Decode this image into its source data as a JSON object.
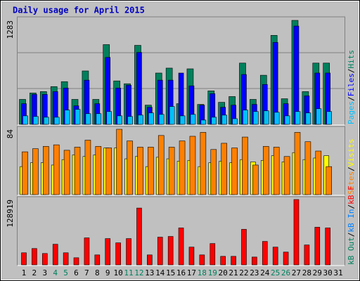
{
  "title": "Daily usage for April 2015",
  "legend_separator": "/",
  "categories": [
    "1",
    "2",
    "3",
    "4",
    "5",
    "6",
    "7",
    "8",
    "9",
    "10",
    "11",
    "12",
    "13",
    "14",
    "15",
    "16",
    "17",
    "18",
    "19",
    "20",
    "21",
    "22",
    "23",
    "24",
    "25",
    "26",
    "27",
    "28",
    "29",
    "30",
    "31"
  ],
  "category_colors": [
    "#000000",
    "#000000",
    "#000000",
    "#00805c",
    "#00805c",
    "#000000",
    "#000000",
    "#000000",
    "#000000",
    "#000000",
    "#00805c",
    "#00805c",
    "#000000",
    "#000000",
    "#000000",
    "#000000",
    "#000000",
    "#00805c",
    "#00805c",
    "#000000",
    "#000000",
    "#000000",
    "#000000",
    "#000000",
    "#00805c",
    "#00805c",
    "#000000",
    "#000000",
    "#000000",
    "#000000",
    "#000000"
  ],
  "chart_data": [
    {
      "type": "bar",
      "ylim": [
        0,
        1283
      ],
      "yticks": [
        1283
      ],
      "grid": true,
      "series": [
        {
          "name": "Hits",
          "color": "#00805c",
          "values": [
            308,
            387,
            404,
            466,
            527,
            308,
            659,
            308,
            984,
            536,
            501,
            975,
            237,
            633,
            694,
            255,
            685,
            246,
            413,
            272,
            343,
            756,
            308,
            606,
            1098,
            316,
            1283,
            404,
            756,
            756,
            null
          ]
        },
        {
          "name": "Files",
          "color": "#0000ff",
          "values": [
            255,
            369,
            369,
            404,
            448,
            228,
            545,
            255,
            826,
            448,
            483,
            888,
            211,
            545,
            545,
            633,
            475,
            237,
            378,
            211,
            237,
            615,
            246,
            492,
            1011,
            255,
            1213,
            351,
            633,
            633,
            null
          ]
        },
        {
          "name": "Pages",
          "color": "#00c0ff",
          "values": [
            105,
            97,
            88,
            88,
            176,
            185,
            132,
            132,
            158,
            105,
            97,
            114,
            141,
            123,
            220,
            105,
            123,
            53,
            88,
            114,
            70,
            176,
            158,
            167,
            149,
            105,
            158,
            141,
            193,
            158,
            null
          ]
        }
      ]
    },
    {
      "type": "bar",
      "ylim": [
        0,
        84
      ],
      "yticks": [
        84
      ],
      "grid": false,
      "series": [
        {
          "name": "Visits",
          "color": "#ffff00",
          "values": [
            36,
            41,
            41,
            38,
            45,
            51,
            49,
            51,
            60,
            60,
            46,
            49,
            36,
            48,
            46,
            43,
            44,
            36,
            41,
            43,
            41,
            45,
            42,
            44,
            50,
            42,
            54,
            45,
            47,
            50,
            null
          ]
        },
        {
          "name": "Sites",
          "color": "#ff8000",
          "values": [
            55,
            59,
            62,
            64,
            57,
            61,
            70,
            62,
            60,
            84,
            69,
            61,
            61,
            76,
            61,
            69,
            75,
            80,
            58,
            66,
            60,
            74,
            38,
            62,
            61,
            49,
            80,
            68,
            56,
            36,
            null
          ]
        }
      ]
    },
    {
      "type": "bar",
      "ylim": [
        0,
        128919
      ],
      "yticks": [
        128919
      ],
      "grid": false,
      "series": [
        {
          "name": "kB F",
          "color": "#ff0000",
          "values": [
            23822,
            32230,
            22420,
            40640,
            23822,
            14013,
            53249,
            19618,
            51848,
            43440,
            51848,
            112101,
            19618,
            54650,
            56052,
            72867,
            35032,
            19618,
            42038,
            16815,
            16815,
            70065,
            15414,
            46241,
            35032,
            25223,
            128919,
            39236,
            74269,
            72867,
            null
          ]
        },
        {
          "name": "kB In",
          "color": "#0080ff",
          "values": [
            null,
            null,
            null,
            null,
            null,
            null,
            null,
            null,
            null,
            null,
            null,
            null,
            null,
            null,
            null,
            null,
            null,
            null,
            null,
            null,
            null,
            null,
            null,
            null,
            null,
            null,
            null,
            null,
            null,
            null,
            null
          ]
        },
        {
          "name": "kB Out",
          "color": "#00805c",
          "values": [
            null,
            null,
            null,
            null,
            null,
            null,
            null,
            null,
            null,
            null,
            null,
            null,
            null,
            null,
            null,
            null,
            null,
            null,
            null,
            null,
            null,
            null,
            null,
            null,
            null,
            null,
            null,
            null,
            null,
            null,
            null
          ]
        }
      ]
    }
  ]
}
